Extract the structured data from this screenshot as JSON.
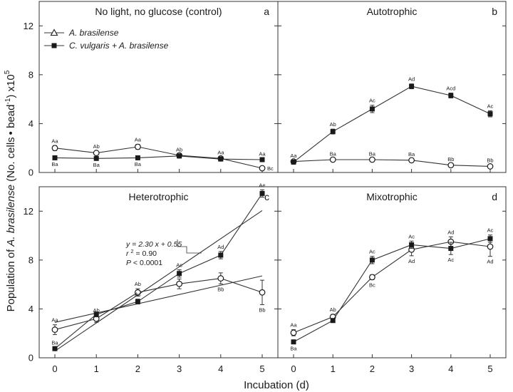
{
  "figure": {
    "ylabel_prefix": "Population of ",
    "ylabel_species": "A. brasilense",
    "ylabel_units": "(No. cells",
    "ylabel_bullet": "•",
    "ylabel_bead": " bead",
    "ylabel_bead_exp": "-1",
    "ylabel_tail": ") x10",
    "ylabel_exp": "5",
    "xlabel": "Incubation (d)"
  },
  "legend": {
    "items": [
      {
        "label": "A. brasilense",
        "marker": "open-triangle",
        "series": 0
      },
      {
        "label": "C. vulgaris + A. brasilense",
        "marker": "filled-square",
        "series": 1
      }
    ]
  },
  "regression": {
    "eq": "y = 2.30 x + 0.55",
    "r_pre": "r ",
    "r_exp": "2",
    "r_post": " = 0.90",
    "p_pre": "P",
    "p_post": " < 0.0001"
  },
  "colors": {
    "line": "#333333",
    "open_fill": "#ffffff",
    "filled": "#1a1a1a"
  },
  "chart_data": [
    {
      "type": "line",
      "panel": "a",
      "title": "No light, no glucose  (control)",
      "x": [
        0,
        1,
        2,
        3,
        4,
        5
      ],
      "ylim": [
        0,
        14
      ],
      "yticks": [
        0,
        4,
        8,
        12
      ],
      "xticks": [],
      "series": [
        {
          "name": "A. brasilense",
          "marker": "open",
          "values": [
            2.0,
            1.6,
            2.1,
            1.4,
            1.15,
            0.35
          ],
          "err": [
            0.2,
            0.15,
            0.2,
            0.1,
            0.1,
            0.1
          ],
          "labels": [
            "Aa",
            "Ab",
            "Aa",
            "Ab",
            "Aa",
            "Bc"
          ],
          "label_pos": [
            "above",
            "above",
            "above",
            "above",
            "above",
            "right"
          ]
        },
        {
          "name": "C. vulgaris + A. brasilense",
          "marker": "filled",
          "values": [
            1.2,
            1.15,
            1.2,
            1.35,
            1.1,
            1.05
          ],
          "err": [
            0.1,
            0.1,
            0.1,
            0.1,
            0.1,
            0.1
          ],
          "labels": [
            "Ba",
            "Ba",
            "Ba",
            "",
            "",
            "Aa"
          ],
          "label_pos": [
            "below",
            "below",
            "below",
            "below",
            "below",
            "above"
          ]
        }
      ]
    },
    {
      "type": "line",
      "panel": "b",
      "title": "Autotrophic",
      "x": [
        0,
        1,
        2,
        3,
        4,
        5
      ],
      "ylim": [
        0,
        14
      ],
      "yticks": [],
      "xticks": [],
      "series": [
        {
          "name": "A. brasilense",
          "marker": "open",
          "values": [
            0.9,
            1.05,
            1.05,
            1.0,
            0.6,
            0.5
          ],
          "err": [
            0.1,
            0.1,
            0.1,
            0.1,
            0.1,
            0.1
          ],
          "labels": [
            "Aa",
            "Ba",
            "Ba",
            "Ba",
            "Bb",
            "Bb"
          ],
          "label_pos": [
            "above",
            "above",
            "above",
            "above",
            "above",
            "above"
          ]
        },
        {
          "name": "C. vulgaris + A. brasilense",
          "marker": "filled",
          "values": [
            0.85,
            3.35,
            5.2,
            7.05,
            6.3,
            4.8
          ],
          "err": [
            0.15,
            0.2,
            0.3,
            0.2,
            0.2,
            0.25
          ],
          "labels": [
            "",
            "Ab",
            "Ac",
            "Ad",
            "Acd",
            "Ac"
          ],
          "label_pos": [
            "above",
            "above",
            "above",
            "above",
            "above",
            "above"
          ]
        }
      ]
    },
    {
      "type": "line",
      "panel": "c",
      "title": "Heterotrophic",
      "x": [
        0,
        1,
        2,
        3,
        4,
        5
      ],
      "ylim": [
        0,
        14
      ],
      "yticks": [
        0,
        4,
        8,
        12
      ],
      "xticks": [
        0,
        1,
        2,
        3,
        4,
        5
      ],
      "series": [
        {
          "name": "A. brasilense",
          "marker": "open",
          "values": [
            2.3,
            3.2,
            5.35,
            6.05,
            6.5,
            5.35
          ],
          "err": [
            0.4,
            0.3,
            0.3,
            0.4,
            0.45,
            1.0
          ],
          "labels": [
            "Aa",
            "Ab",
            "Ab",
            "",
            "Bb",
            "Bb"
          ],
          "label_pos": [
            "above",
            "above",
            "above",
            "above",
            "below",
            "below"
          ]
        },
        {
          "name": "C. vulgaris + A. brasilense",
          "marker": "filled",
          "values": [
            0.75,
            3.55,
            4.6,
            6.9,
            8.4,
            13.45
          ],
          "err": [
            0.1,
            0.2,
            0.2,
            0.3,
            0.3,
            0.3
          ],
          "labels": [
            "Ba",
            "",
            "Ac",
            "Ac",
            "Ad",
            "Ae"
          ],
          "label_pos": [
            "above",
            "above",
            "above",
            "above",
            "above",
            "above"
          ]
        }
      ],
      "fits": [
        {
          "x": [
            0,
            5
          ],
          "y": [
            2.9,
            6.7
          ]
        },
        {
          "x": [
            0,
            5
          ],
          "y": [
            0.55,
            12.05
          ]
        }
      ]
    },
    {
      "type": "line",
      "panel": "d",
      "title": "Mixotrophic",
      "x": [
        0,
        1,
        2,
        3,
        4,
        5
      ],
      "ylim": [
        0,
        14
      ],
      "yticks": [],
      "xticks": [
        0,
        1,
        2,
        3,
        4,
        5
      ],
      "series": [
        {
          "name": "A. brasilense",
          "marker": "open",
          "values": [
            2.05,
            3.35,
            6.6,
            8.85,
            9.5,
            9.1
          ],
          "err": [
            0.25,
            0.2,
            0.2,
            0.5,
            0.4,
            0.8
          ],
          "labels": [
            "Aa",
            "Ab",
            "Bc",
            "Ad",
            "Ad",
            "Ad"
          ],
          "label_pos": [
            "above",
            "above",
            "below",
            "below",
            "above",
            "below"
          ]
        },
        {
          "name": "C. vulgaris + A. brasilense",
          "marker": "filled",
          "values": [
            1.3,
            3.05,
            8.0,
            9.25,
            8.95,
            9.75
          ],
          "err": [
            0.1,
            0.15,
            0.3,
            0.3,
            0.5,
            0.3
          ],
          "labels": [
            "Ba",
            "",
            "Ac",
            "Ac",
            "Ac",
            "Ac"
          ],
          "label_pos": [
            "below",
            "below",
            "above",
            "above",
            "below",
            "above"
          ]
        }
      ]
    }
  ]
}
